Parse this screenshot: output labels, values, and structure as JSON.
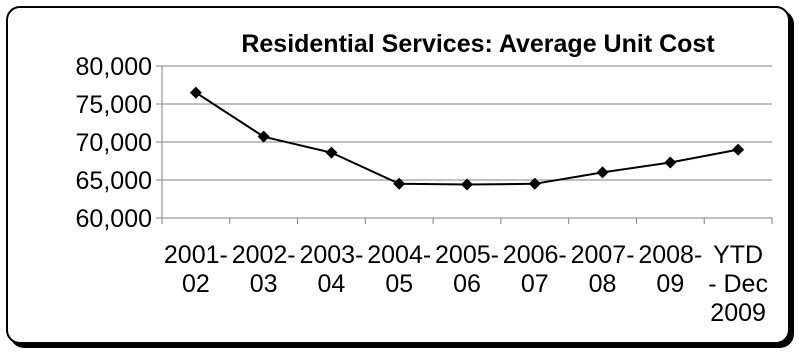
{
  "chart_data": {
    "type": "line",
    "title": "Residential Services: Average Unit Cost",
    "categories": [
      [
        "2001-",
        "02"
      ],
      [
        "2002-",
        "03"
      ],
      [
        "2003-",
        "04"
      ],
      [
        "2004-",
        "05"
      ],
      [
        "2005-",
        "06"
      ],
      [
        "2006-",
        "07"
      ],
      [
        "2007-",
        "08"
      ],
      [
        "2008-",
        "09"
      ],
      [
        "YTD",
        "- Dec",
        "2009"
      ]
    ],
    "series": [
      {
        "values": [
          76500,
          70700,
          68600,
          64500,
          64400,
          64500,
          66000,
          67300,
          69000
        ]
      }
    ],
    "ylim": [
      60000,
      80000
    ],
    "yticks": [
      60000,
      65000,
      70000,
      75000,
      80000
    ],
    "ytick_labels": [
      "60,000",
      "65,000",
      "70,000",
      "75,000",
      "80,000"
    ],
    "grid": true,
    "line_color": "#000000",
    "marker": "diamond"
  }
}
